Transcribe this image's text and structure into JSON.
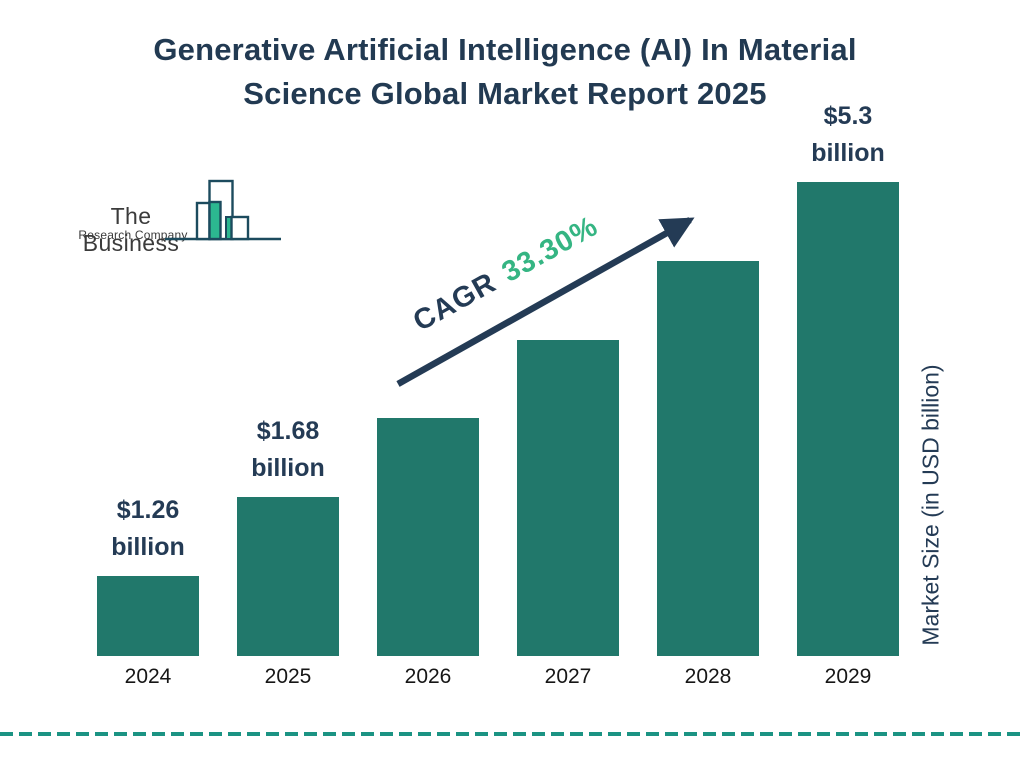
{
  "title": {
    "line1": "Generative Artificial Intelligence (AI) In Material",
    "line2": "Science Global Market Report 2025"
  },
  "logo": {
    "name": "The Business",
    "subname": "Research Company"
  },
  "cagr": {
    "prefix": "CAGR",
    "value": "33.30%"
  },
  "y_axis_label": "Market Size (in USD billion)",
  "chart_data": {
    "type": "bar",
    "title": "Generative Artificial Intelligence (AI) In Material Science Global Market Report 2025",
    "categories": [
      "2024",
      "2025",
      "2026",
      "2027",
      "2028",
      "2029"
    ],
    "values": [
      1.26,
      1.68,
      2.24,
      2.99,
      3.98,
      5.3
    ],
    "unit": "USD billion",
    "xlabel": "",
    "ylabel": "Market Size (in USD billion)",
    "cagr": "33.30%",
    "legend": "none",
    "grid": "off",
    "value_labels": {
      "2024": {
        "amount": "$1.26",
        "unit": "billion"
      },
      "2025": {
        "amount": "$1.68",
        "unit": "billion"
      },
      "2029": {
        "amount": "$5.3",
        "unit": "billion"
      }
    }
  },
  "colors": {
    "bar_teal": "#21786B",
    "navy_text": "#243B55",
    "title_navy": "#223A52",
    "accent_green": "#35B583",
    "dash_teal": "#1B9383",
    "logo_outline": "#1C4B5E",
    "logo_green": "#2CB790",
    "x_label_black": "#161616"
  }
}
